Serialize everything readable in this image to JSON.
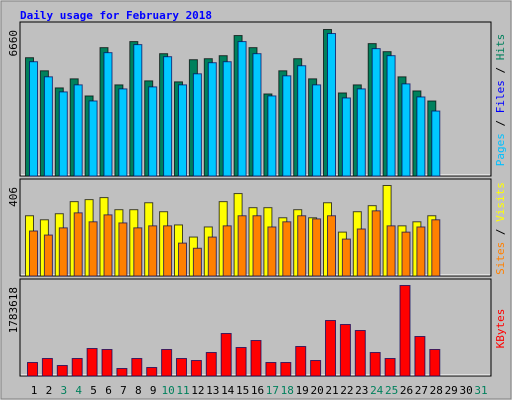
{
  "chart_data": [
    {
      "type": "bar",
      "title": "Daily usage for February 2018",
      "ylim": [
        0,
        6660
      ],
      "yticks": [
        6660
      ],
      "y_label_parts": [
        {
          "text": "Pages",
          "color": "#00c0ff"
        },
        {
          "text": " / ",
          "color": "#000000"
        },
        {
          "text": "Files",
          "color": "#0000ff"
        },
        {
          "text": " / ",
          "color": "#000000"
        },
        {
          "text": "Hits",
          "color": "#00805c"
        }
      ],
      "series": [
        {
          "name": "Hits",
          "color": "#00805c",
          "values": [
            5346,
            4757,
            3987,
            4395,
            3625,
            5799,
            4123,
            6071,
            4304,
            5527,
            4259,
            5256,
            5301,
            5437,
            6343,
            5799,
            3715,
            4757,
            5301,
            4395,
            6615,
            3760,
            4123,
            5980,
            5618,
            4485,
            3851,
            3398,
            null,
            null,
            null
          ]
        },
        {
          "name": "Files",
          "color": "#00c8ff",
          "values": [
            5165,
            4485,
            3806,
            4123,
            3398,
            5573,
            3942,
            5935,
            4032,
            5391,
            4123,
            4621,
            5120,
            5165,
            6071,
            5527,
            3625,
            4530,
            4984,
            4123,
            6434,
            3534,
            3942,
            5754,
            5437,
            4168,
            3579,
            2945,
            null,
            null,
            null
          ]
        }
      ]
    },
    {
      "type": "bar",
      "ylim": [
        0,
        406
      ],
      "yticks": [
        406
      ],
      "y_label_parts": [
        {
          "text": "Sites",
          "color": "#ff8000"
        },
        {
          "text": " / ",
          "color": "#000000"
        },
        {
          "text": "Visits",
          "color": "#ffff00"
        }
      ],
      "series": [
        {
          "name": "Visits",
          "color": "#ffff00",
          "values": [
            271,
            253,
            280,
            334,
            343,
            352,
            298,
            298,
            329,
            289,
            230,
            176,
            221,
            334,
            370,
            307,
            307,
            262,
            298,
            262,
            329,
            198,
            289,
            316,
            406,
            226,
            244,
            271,
            null,
            null,
            null
          ]
        },
        {
          "name": "Sites",
          "color": "#ff8000",
          "values": [
            203,
            185,
            217,
            284,
            244,
            275,
            239,
            217,
            226,
            226,
            149,
            126,
            176,
            226,
            271,
            271,
            221,
            244,
            271,
            257,
            271,
            167,
            212,
            293,
            226,
            198,
            221,
            253,
            null,
            null,
            null
          ]
        }
      ]
    },
    {
      "type": "bar",
      "ylim": [
        0,
        1783618
      ],
      "yticks": [
        1783618
      ],
      "y_label_parts": [
        {
          "text": "KBytes",
          "color": "#ff0000"
        }
      ],
      "categories": [
        "1",
        "2",
        "3",
        "4",
        "5",
        "6",
        "7",
        "8",
        "9",
        "10",
        "11",
        "12",
        "13",
        "14",
        "15",
        "16",
        "17",
        "18",
        "19",
        "20",
        "21",
        "22",
        "23",
        "24",
        "25",
        "26",
        "27",
        "28",
        "29",
        "30",
        "31"
      ],
      "category_colors": [
        "#000000",
        "#000000",
        "#00805c",
        "#00805c",
        "#000000",
        "#000000",
        "#000000",
        "#000000",
        "#000000",
        "#00805c",
        "#00805c",
        "#000000",
        "#000000",
        "#000000",
        "#000000",
        "#000000",
        "#00805c",
        "#00805c",
        "#000000",
        "#000000",
        "#000000",
        "#000000",
        "#000000",
        "#00805c",
        "#00805c",
        "#000000",
        "#000000",
        "#000000",
        "#000000",
        "#000000",
        "#00805c"
      ],
      "series": [
        {
          "name": "KBytes",
          "color": "#ff0000",
          "values": [
            274400,
            352800,
            215600,
            352800,
            548800,
            529200,
            156800,
            352800,
            176400,
            529200,
            352800,
            313600,
            470400,
            842800,
            568400,
            705600,
            274400,
            274400,
            588000,
            313600,
            1097600,
            1019200,
            901600,
            470400,
            352800,
            1783618,
            784000,
            529200,
            null,
            null,
            null
          ]
        }
      ]
    }
  ]
}
